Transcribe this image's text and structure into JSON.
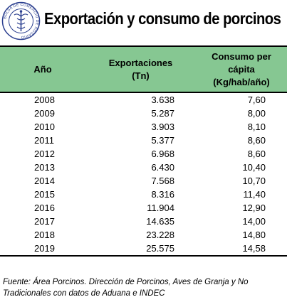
{
  "header": {
    "title": "Exportación y consumo de porcinos",
    "logo_text": "BOLSA DE COMERCIO DE ROSARIO"
  },
  "table": {
    "columns": [
      {
        "lines": [
          "Año"
        ]
      },
      {
        "lines": [
          "Exportaciones",
          "(Tn)"
        ]
      },
      {
        "lines": [
          "Consumo per",
          "cápita",
          "(Kg/hab/año)"
        ]
      }
    ],
    "rows": [
      [
        "2008",
        "3.638",
        "7,60"
      ],
      [
        "2009",
        "5.287",
        "8,00"
      ],
      [
        "2010",
        "3.903",
        "8,10"
      ],
      [
        "2011",
        "5.377",
        "8,60"
      ],
      [
        "2012",
        "6.968",
        "8,60"
      ],
      [
        "2013",
        "6.430",
        "10,40"
      ],
      [
        "2014",
        "7.568",
        "10,70"
      ],
      [
        "2015",
        "8.316",
        "11,40"
      ],
      [
        "2016",
        "11.904",
        "12,90"
      ],
      [
        "2017",
        "14.635",
        "14,00"
      ],
      [
        "2018",
        "23.228",
        "14,80"
      ],
      [
        "2019",
        "25.575",
        "14,58"
      ]
    ]
  },
  "footer": {
    "source_line1": "Fuente: Área Porcinos. Dirección de Porcinos, Aves de Granja y No",
    "source_line2": "Tradicionales con datos de Aduana e INDEC"
  },
  "colors": {
    "header_fill": "#86c792",
    "logo_blue": "#2b3f8f"
  }
}
